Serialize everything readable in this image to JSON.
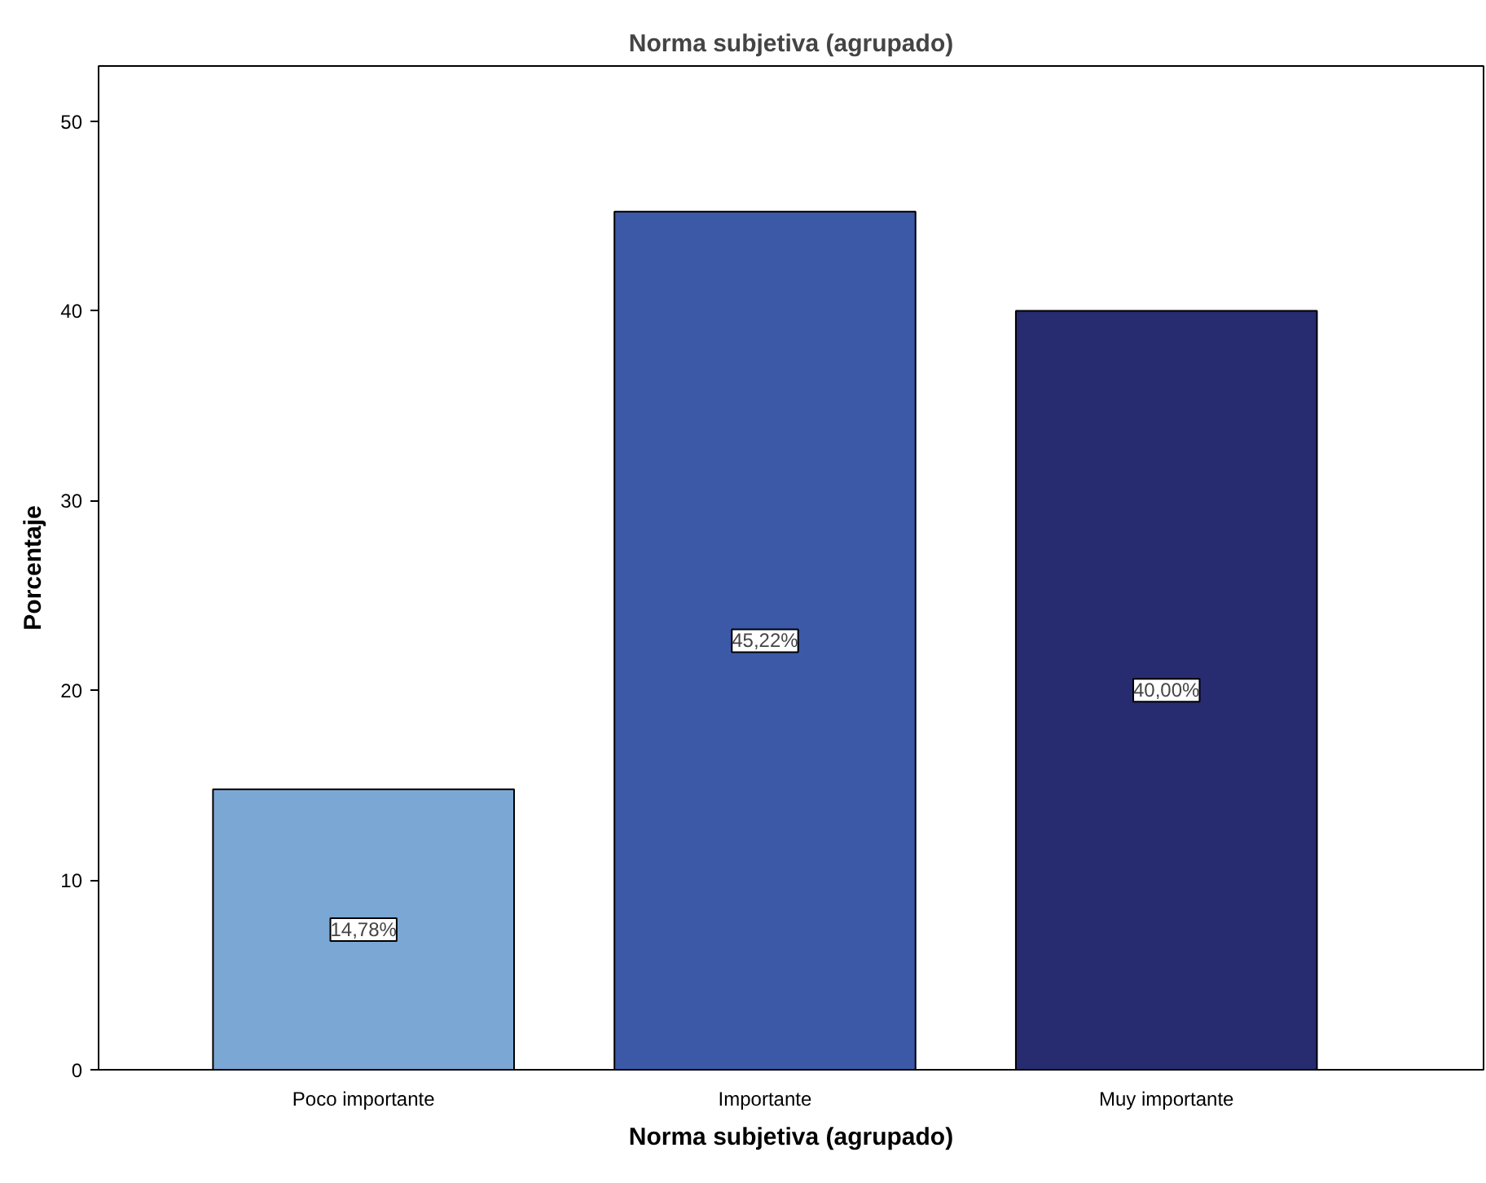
{
  "chart_data": {
    "type": "bar",
    "title": "Norma subjetiva (agrupado)",
    "xlabel": "Norma subjetiva (agrupado)",
    "ylabel": "Porcentaje",
    "categories": [
      "Poco importante",
      "Importante",
      "Muy importante"
    ],
    "values": [
      14.78,
      45.22,
      40.0
    ],
    "colors": [
      "#7ba7d4",
      "#3c59a8",
      "#272b6f"
    ],
    "value_labels": [
      "14,78%",
      "45,22%",
      "40,00%"
    ],
    "ylim": [
      0,
      52.9
    ],
    "yticks": [
      0,
      10,
      20,
      30,
      40,
      50
    ],
    "grid": false
  }
}
